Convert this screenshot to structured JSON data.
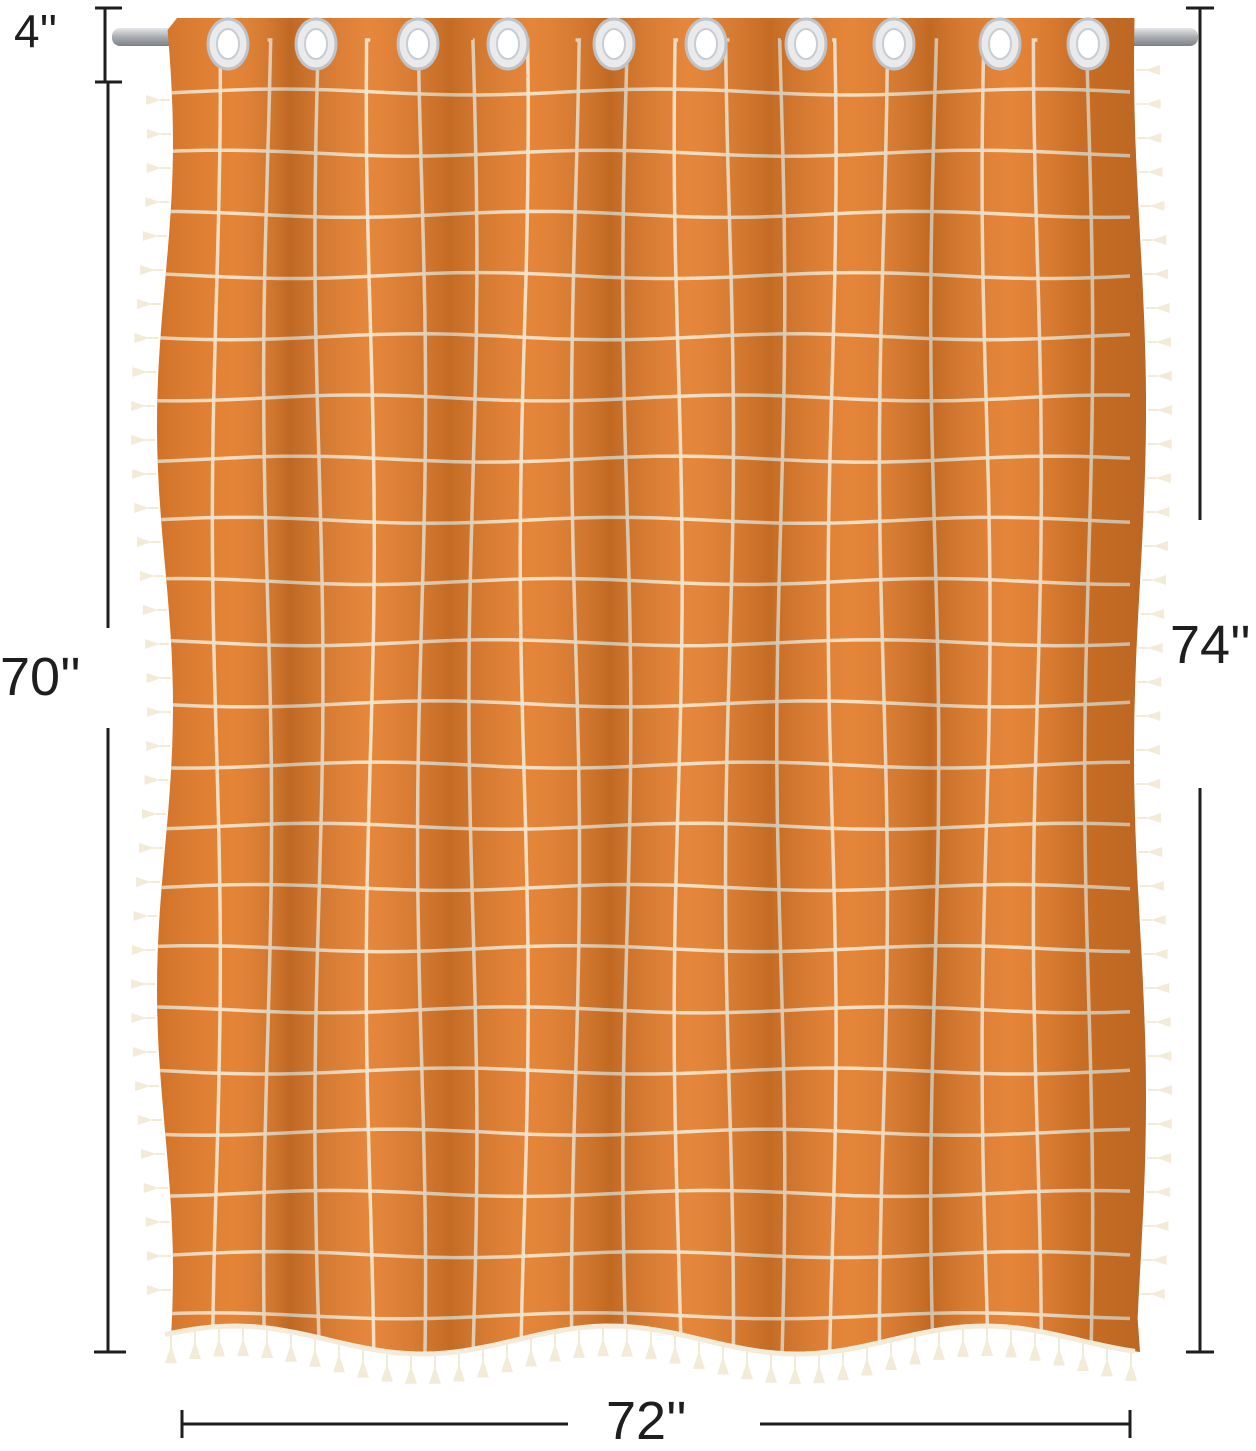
{
  "dimensions": {
    "header_drop": "4''",
    "panel_length": "70''",
    "total_length": "74''",
    "panel_width": "72''"
  },
  "colors": {
    "fabric": "#e37c2a",
    "fabric_dark": "#cf6a1d",
    "grid_line": "#f6e3c6",
    "tassel": "#f4ead8",
    "rod": "#b9bcc0",
    "dimension_line": "#1e1e1e"
  },
  "product": {
    "pattern": "plaid grid",
    "grommet_count": 10,
    "trim": "tassel fringe"
  }
}
